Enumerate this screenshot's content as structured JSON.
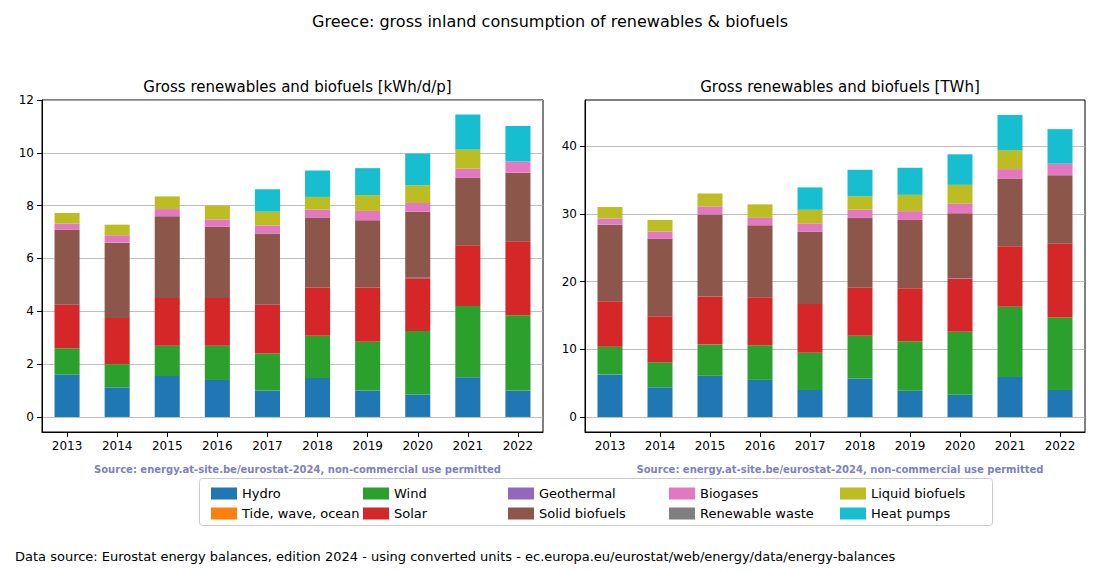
{
  "title": "Greece: gross inland consumption of renewables & biofuels",
  "footer": "Data source: Eurostat energy balances, edition 2024 - using converted units - ec.europa.eu/eurostat/web/energy/data/energy-balances",
  "chart_data": [
    {
      "type": "bar",
      "stacked": true,
      "grid": true,
      "legend": "bottom",
      "title": "Gross renewables and biofuels [kWh/d/p]",
      "source": "Source: energy.at-site.be/eurostat-2024, non-commercial use permitted",
      "categories": [
        "2013",
        "2014",
        "2015",
        "2016",
        "2017",
        "2018",
        "2019",
        "2020",
        "2021",
        "2022"
      ],
      "ylim": [
        -0.57,
        12.0
      ],
      "yticks": [
        0,
        2,
        4,
        6,
        8,
        10,
        12
      ],
      "series": [
        {
          "name": "Hydro",
          "color": "#1f77b4",
          "values": [
            1.6,
            1.12,
            1.55,
            1.4,
            1.0,
            1.47,
            1.0,
            0.85,
            1.5,
            1.0
          ]
        },
        {
          "name": "Tide, wave, ocean",
          "color": "#ff7f0e",
          "values": [
            0,
            0,
            0,
            0,
            0,
            0,
            0,
            0,
            0,
            0
          ]
        },
        {
          "name": "Wind",
          "color": "#2ca02c",
          "values": [
            1.0,
            0.88,
            1.15,
            1.3,
            1.4,
            1.6,
            1.85,
            2.4,
            2.7,
            2.85
          ]
        },
        {
          "name": "Solar",
          "color": "#d62728",
          "values": [
            1.65,
            1.75,
            1.8,
            1.8,
            1.85,
            1.83,
            2.05,
            2.0,
            2.3,
            2.8
          ]
        },
        {
          "name": "Geothermal",
          "color": "#9467bd",
          "values": [
            0,
            0,
            0,
            0,
            0,
            0,
            0,
            0.02,
            0,
            0
          ]
        },
        {
          "name": "Solid biofuels",
          "color": "#8c564b",
          "values": [
            2.85,
            2.85,
            3.1,
            2.7,
            2.7,
            2.65,
            2.55,
            2.5,
            2.55,
            2.6
          ]
        },
        {
          "name": "Biogases",
          "color": "#e377c2",
          "values": [
            0.22,
            0.28,
            0.27,
            0.28,
            0.3,
            0.3,
            0.35,
            0.33,
            0.35,
            0.42
          ]
        },
        {
          "name": "Renewable waste",
          "color": "#7f7f7f",
          "values": [
            0,
            0,
            0,
            0,
            0,
            0,
            0,
            0,
            0,
            0
          ]
        },
        {
          "name": "Liquid biofuels",
          "color": "#bcbd22",
          "values": [
            0.4,
            0.4,
            0.48,
            0.52,
            0.52,
            0.48,
            0.6,
            0.67,
            0.72,
            0
          ]
        },
        {
          "name": "Heat pumps",
          "color": "#17becf",
          "values": [
            0,
            0,
            0,
            0,
            0.85,
            1.0,
            1.02,
            1.2,
            1.33,
            1.35
          ]
        }
      ]
    },
    {
      "type": "bar",
      "stacked": true,
      "grid": true,
      "legend": "bottom",
      "title": "Gross renewables and biofuels [TWh]",
      "source": "Source: energy.at-site.be/eurostat-2024, non-commercial use permitted",
      "categories": [
        "2013",
        "2014",
        "2015",
        "2016",
        "2017",
        "2018",
        "2019",
        "2020",
        "2021",
        "2022"
      ],
      "ylim": [
        -2.2,
        46.8
      ],
      "yticks": [
        0,
        10,
        20,
        30,
        40
      ],
      "series": [
        {
          "name": "Hydro",
          "color": "#1f77b4",
          "values": [
            6.3,
            4.4,
            6.1,
            5.5,
            4.0,
            5.7,
            3.9,
            3.3,
            5.9,
            4.0
          ]
        },
        {
          "name": "Tide, wave, ocean",
          "color": "#ff7f0e",
          "values": [
            0,
            0,
            0,
            0,
            0,
            0,
            0,
            0,
            0,
            0
          ]
        },
        {
          "name": "Wind",
          "color": "#2ca02c",
          "values": [
            4.1,
            3.7,
            4.6,
            5.1,
            5.5,
            6.3,
            7.3,
            9.3,
            10.4,
            10.7
          ]
        },
        {
          "name": "Solar",
          "color": "#d62728",
          "values": [
            6.7,
            6.8,
            7.1,
            7.1,
            7.2,
            7.1,
            7.8,
            7.8,
            8.9,
            10.9
          ]
        },
        {
          "name": "Geothermal",
          "color": "#9467bd",
          "values": [
            0,
            0,
            0,
            0,
            0,
            0,
            0,
            0.08,
            0,
            0
          ]
        },
        {
          "name": "Solid biofuels",
          "color": "#8c564b",
          "values": [
            11.3,
            11.4,
            12.1,
            10.6,
            10.7,
            10.3,
            10.1,
            9.6,
            10.0,
            10.1
          ]
        },
        {
          "name": "Biogases",
          "color": "#e377c2",
          "values": [
            0.9,
            1.1,
            1.2,
            1.1,
            1.2,
            1.2,
            1.3,
            1.4,
            1.4,
            1.7
          ]
        },
        {
          "name": "Renewable waste",
          "color": "#7f7f7f",
          "values": [
            0,
            0,
            0,
            0,
            0,
            0,
            0,
            0,
            0,
            0
          ]
        },
        {
          "name": "Liquid biofuels",
          "color": "#bcbd22",
          "values": [
            1.7,
            1.7,
            1.9,
            2.0,
            2.0,
            2.0,
            2.4,
            2.8,
            2.8,
            0
          ]
        },
        {
          "name": "Heat pumps",
          "color": "#17becf",
          "values": [
            0,
            0,
            0,
            0,
            3.3,
            3.9,
            4.0,
            4.5,
            5.2,
            5.1
          ]
        }
      ]
    }
  ]
}
